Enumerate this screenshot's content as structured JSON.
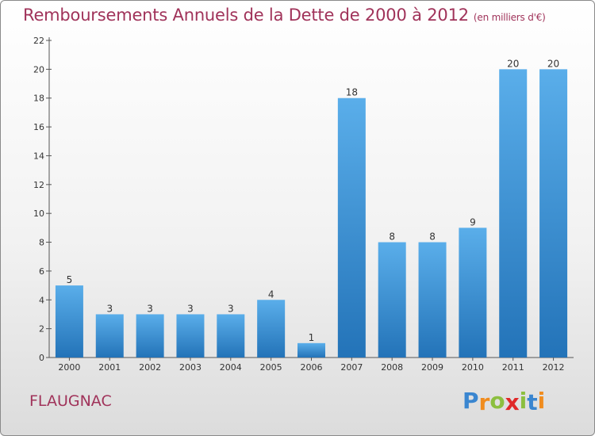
{
  "title": "Remboursements Annuels de la Dette de 2000 à 2012",
  "unit": "(en milliers d'€)",
  "commune": "FLAUGNAC",
  "logo": {
    "letters": [
      "P",
      "r",
      "o",
      "x",
      "i",
      "t",
      "i"
    ],
    "colors": [
      "#3a86d0",
      "#f08c1e",
      "#8cbf3f",
      "#e02828",
      "#8cbf3f",
      "#3a86d0",
      "#f08c1e"
    ]
  },
  "colors": {
    "bar": "#3a95dc",
    "bar_light": "#5aaeea",
    "bar_dark": "#2373b8",
    "title": "#a0335a"
  },
  "chart_data": {
    "type": "bar",
    "title": "Remboursements Annuels de la Dette de 2000 à 2012",
    "ylabel": "",
    "xlabel": "",
    "categories": [
      "2000",
      "2001",
      "2002",
      "2003",
      "2004",
      "2005",
      "2006",
      "2007",
      "2008",
      "2009",
      "2010",
      "2011",
      "2012"
    ],
    "values": [
      5,
      3,
      3,
      3,
      3,
      4,
      1,
      18,
      8,
      8,
      9,
      20,
      20
    ],
    "ylim": [
      0,
      22
    ],
    "yticks": [
      0,
      2,
      4,
      6,
      8,
      10,
      12,
      14,
      16,
      18,
      20,
      22
    ],
    "grid": false
  }
}
